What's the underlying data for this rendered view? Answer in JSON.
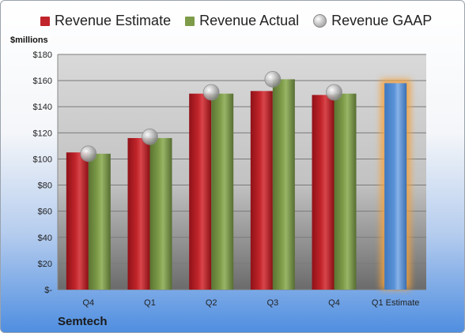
{
  "company": "Semtech",
  "unit_label": "$millions",
  "colors": {
    "estimate": "#c0242a",
    "actual": "#7d9b48",
    "gaap": "#a8a8a8",
    "forecast": "#5b93d8",
    "forecast_glow": "#f5a13a"
  },
  "chart_data": {
    "type": "bar",
    "categories": [
      "Q4",
      "Q1",
      "Q2",
      "Q3",
      "Q4",
      "Q1 Estimate"
    ],
    "series": [
      {
        "name": "Revenue Estimate",
        "values": [
          105,
          116,
          150,
          152,
          149,
          158
        ]
      },
      {
        "name": "Revenue Actual",
        "values": [
          104,
          116,
          150,
          161,
          150,
          null
        ]
      },
      {
        "name": "Revenue GAAP",
        "values": [
          104,
          117,
          151,
          161,
          151,
          null
        ]
      }
    ],
    "ylim": [
      0,
      180
    ],
    "yticks": [
      0,
      20,
      40,
      60,
      80,
      100,
      120,
      140,
      160,
      180
    ],
    "ytick_labels": [
      "$-",
      "$20",
      "$40",
      "$60",
      "$80",
      "$100",
      "$120",
      "$140",
      "$160",
      "$180"
    ],
    "legend": [
      "Revenue Estimate",
      "Revenue Actual",
      "Revenue GAAP"
    ],
    "legend_position": "top",
    "grid": true
  }
}
